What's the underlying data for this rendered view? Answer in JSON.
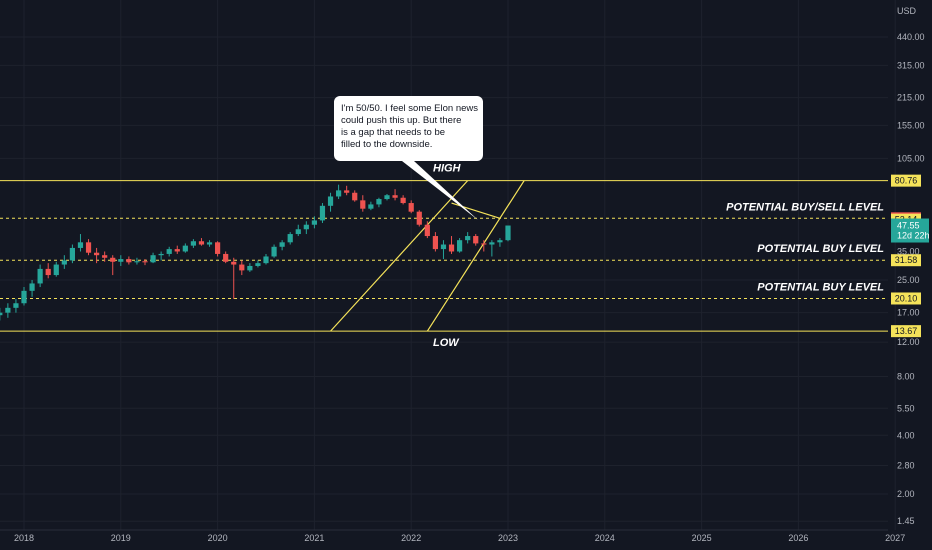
{
  "chart_data": {
    "type": "candlestick",
    "currency": "USD",
    "y_scale": "log",
    "ylim": [
      1.45,
      600
    ],
    "y_ticks": [
      "440.00",
      "315.00",
      "215.00",
      "155.00",
      "105.00",
      "25.00",
      "17.00",
      "12.00",
      "8.00",
      "5.50",
      "4.00",
      "2.80",
      "2.00",
      "1.45"
    ],
    "x_ticks": [
      "2018",
      "2019",
      "2020",
      "2021",
      "2022",
      "2023",
      "2024",
      "2025",
      "2026",
      "2027"
    ],
    "candles": [
      {
        "date": "2017-10",
        "o": 16.5,
        "h": 18.0,
        "l": 15.5,
        "c": 17.0
      },
      {
        "date": "2017-11",
        "o": 17.0,
        "h": 19.0,
        "l": 16.0,
        "c": 18.0
      },
      {
        "date": "2017-12",
        "o": 18.0,
        "h": 20.0,
        "l": 17.0,
        "c": 19.0
      },
      {
        "date": "2018-01",
        "o": 19.0,
        "h": 23.0,
        "l": 18.5,
        "c": 22.0
      },
      {
        "date": "2018-02",
        "o": 22.0,
        "h": 25.0,
        "l": 20.5,
        "c": 24.0
      },
      {
        "date": "2018-03",
        "o": 24.0,
        "h": 30.0,
        "l": 23.0,
        "c": 28.5
      },
      {
        "date": "2018-04",
        "o": 28.5,
        "h": 30.5,
        "l": 25.5,
        "c": 26.5
      },
      {
        "date": "2018-05",
        "o": 26.5,
        "h": 31.0,
        "l": 26.0,
        "c": 30.0
      },
      {
        "date": "2018-06",
        "o": 30.0,
        "h": 33.5,
        "l": 28.5,
        "c": 31.5
      },
      {
        "date": "2018-07",
        "o": 31.5,
        "h": 38.0,
        "l": 30.5,
        "c": 36.5
      },
      {
        "date": "2018-08",
        "o": 36.5,
        "h": 43.0,
        "l": 35.0,
        "c": 39.0
      },
      {
        "date": "2018-09",
        "o": 39.0,
        "h": 40.5,
        "l": 33.5,
        "c": 34.5
      },
      {
        "date": "2018-10",
        "o": 34.5,
        "h": 36.5,
        "l": 30.5,
        "c": 33.5
      },
      {
        "date": "2018-11",
        "o": 33.5,
        "h": 35.0,
        "l": 31.0,
        "c": 32.5
      },
      {
        "date": "2018-12",
        "o": 32.5,
        "h": 33.5,
        "l": 26.5,
        "c": 31.0
      },
      {
        "date": "2019-01",
        "o": 31.0,
        "h": 33.5,
        "l": 29.5,
        "c": 32.0
      },
      {
        "date": "2019-02",
        "o": 32.0,
        "h": 33.0,
        "l": 30.0,
        "c": 30.8
      },
      {
        "date": "2019-03",
        "o": 30.8,
        "h": 32.5,
        "l": 30.0,
        "c": 31.2
      },
      {
        "date": "2019-04",
        "o": 31.2,
        "h": 32.0,
        "l": 29.8,
        "c": 30.8
      },
      {
        "date": "2019-05",
        "o": 30.8,
        "h": 34.5,
        "l": 30.5,
        "c": 33.5
      },
      {
        "date": "2019-06",
        "o": 33.5,
        "h": 35.0,
        "l": 31.5,
        "c": 34.0
      },
      {
        "date": "2019-07",
        "o": 34.0,
        "h": 37.0,
        "l": 33.0,
        "c": 36.0
      },
      {
        "date": "2019-08",
        "o": 36.0,
        "h": 37.5,
        "l": 34.0,
        "c": 35.0
      },
      {
        "date": "2019-09",
        "o": 35.0,
        "h": 38.5,
        "l": 34.5,
        "c": 37.5
      },
      {
        "date": "2019-10",
        "o": 37.5,
        "h": 40.5,
        "l": 36.5,
        "c": 39.5
      },
      {
        "date": "2019-11",
        "o": 39.5,
        "h": 41.0,
        "l": 37.5,
        "c": 38.0
      },
      {
        "date": "2019-12",
        "o": 38.0,
        "h": 40.0,
        "l": 37.0,
        "c": 39.0
      },
      {
        "date": "2020-01",
        "o": 39.0,
        "h": 39.5,
        "l": 33.0,
        "c": 34.0
      },
      {
        "date": "2020-02",
        "o": 34.0,
        "h": 35.0,
        "l": 30.5,
        "c": 31.0
      },
      {
        "date": "2020-03",
        "o": 31.0,
        "h": 32.5,
        "l": 20.0,
        "c": 30.0
      },
      {
        "date": "2020-04",
        "o": 30.0,
        "h": 31.5,
        "l": 26.5,
        "c": 28.0
      },
      {
        "date": "2020-05",
        "o": 28.0,
        "h": 30.5,
        "l": 27.5,
        "c": 29.5
      },
      {
        "date": "2020-06",
        "o": 29.5,
        "h": 31.5,
        "l": 29.0,
        "c": 30.5
      },
      {
        "date": "2020-07",
        "o": 30.5,
        "h": 34.0,
        "l": 30.0,
        "c": 33.0
      },
      {
        "date": "2020-08",
        "o": 33.0,
        "h": 38.0,
        "l": 32.5,
        "c": 37.0
      },
      {
        "date": "2020-09",
        "o": 37.0,
        "h": 40.0,
        "l": 35.5,
        "c": 39.0
      },
      {
        "date": "2020-10",
        "o": 39.0,
        "h": 44.0,
        "l": 38.0,
        "c": 43.0
      },
      {
        "date": "2020-11",
        "o": 43.0,
        "h": 48.0,
        "l": 42.0,
        "c": 45.5
      },
      {
        "date": "2020-12",
        "o": 45.5,
        "h": 50.0,
        "l": 43.0,
        "c": 48.0
      },
      {
        "date": "2021-01",
        "o": 48.0,
        "h": 53.0,
        "l": 46.0,
        "c": 50.5
      },
      {
        "date": "2021-02",
        "o": 50.5,
        "h": 62.0,
        "l": 49.0,
        "c": 60.0
      },
      {
        "date": "2021-03",
        "o": 60.0,
        "h": 70.0,
        "l": 56.0,
        "c": 67.0
      },
      {
        "date": "2021-04",
        "o": 67.0,
        "h": 77.0,
        "l": 65.0,
        "c": 72.0
      },
      {
        "date": "2021-05",
        "o": 72.0,
        "h": 76.0,
        "l": 68.0,
        "c": 70.0
      },
      {
        "date": "2021-06",
        "o": 70.0,
        "h": 72.0,
        "l": 63.0,
        "c": 64.0
      },
      {
        "date": "2021-07",
        "o": 64.0,
        "h": 68.0,
        "l": 56.0,
        "c": 58.0
      },
      {
        "date": "2021-08",
        "o": 58.0,
        "h": 63.0,
        "l": 57.0,
        "c": 61.0
      },
      {
        "date": "2021-09",
        "o": 61.0,
        "h": 66.0,
        "l": 59.0,
        "c": 65.0
      },
      {
        "date": "2021-10",
        "o": 65.0,
        "h": 69.0,
        "l": 64.0,
        "c": 68.0
      },
      {
        "date": "2021-11",
        "o": 68.0,
        "h": 73.0,
        "l": 64.0,
        "c": 66.0
      },
      {
        "date": "2021-12",
        "o": 66.0,
        "h": 68.0,
        "l": 61.0,
        "c": 62.0
      },
      {
        "date": "2022-01",
        "o": 62.0,
        "h": 64.0,
        "l": 55.0,
        "c": 56.0
      },
      {
        "date": "2022-02",
        "o": 56.0,
        "h": 57.0,
        "l": 47.0,
        "c": 48.0
      },
      {
        "date": "2022-03",
        "o": 48.0,
        "h": 50.0,
        "l": 41.0,
        "c": 42.0
      },
      {
        "date": "2022-04",
        "o": 42.0,
        "h": 44.0,
        "l": 35.0,
        "c": 36.0
      },
      {
        "date": "2022-05",
        "o": 36.0,
        "h": 40.0,
        "l": 32.0,
        "c": 38.0
      },
      {
        "date": "2022-06",
        "o": 38.0,
        "h": 42.0,
        "l": 34.0,
        "c": 35.0
      },
      {
        "date": "2022-07",
        "o": 35.0,
        "h": 41.0,
        "l": 34.5,
        "c": 40.0
      },
      {
        "date": "2022-08",
        "o": 40.0,
        "h": 44.0,
        "l": 38.5,
        "c": 42.0
      },
      {
        "date": "2022-09",
        "o": 42.0,
        "h": 43.0,
        "l": 37.5,
        "c": 38.5
      },
      {
        "date": "2022-10",
        "o": 38.5,
        "h": 40.0,
        "l": 35.0,
        "c": 38.0
      },
      {
        "date": "2022-11",
        "o": 38.0,
        "h": 40.0,
        "l": 33.0,
        "c": 39.0
      },
      {
        "date": "2022-12",
        "o": 39.0,
        "h": 41.0,
        "l": 37.0,
        "c": 40.0
      },
      {
        "date": "2023-01",
        "o": 40.0,
        "h": 47.0,
        "l": 39.5,
        "c": 47.55
      }
    ],
    "levels": [
      {
        "value": 80.76,
        "style": "solid",
        "label": "HIGH",
        "tag": "80.76"
      },
      {
        "value": 51.78,
        "style": "dashed",
        "label": "POTENTIAL BUY/SELL LEVEL",
        "tag": "51.78"
      },
      {
        "value": 31.58,
        "style": "dashed",
        "label": "POTENTIAL BUY LEVEL",
        "tag": "31.58"
      },
      {
        "value": 20.1,
        "style": "dashed",
        "label": "POTENTIAL BUY LEVEL",
        "tag": "20.10"
      },
      {
        "value": 13.67,
        "style": "solid",
        "label": "LOW",
        "tag": "13.67"
      }
    ],
    "tags": {
      "high_52": "52.14",
      "current_price": "47.55",
      "countdown": "12d 22h",
      "partial_tick": "35.00"
    },
    "channel_lines": [
      {
        "from": {
          "date": "2021-03",
          "v": 13.67
        },
        "to": {
          "date": "2022-08",
          "v": 80.76
        }
      },
      {
        "from": {
          "date": "2022-03",
          "v": 13.67
        },
        "to": {
          "date": "2023-03",
          "v": 80.76
        }
      },
      {
        "from": {
          "date": "2022-06",
          "v": 62.0
        },
        "to": {
          "date": "2022-12",
          "v": 51.78
        }
      }
    ],
    "callout": {
      "lines": [
        "I'm 50/50. I feel some Elon news",
        "could push this up. But there",
        "is a gap that needs to be",
        "filled to the downside."
      ]
    },
    "colors": {
      "background": "#131722",
      "up": "#26a69a",
      "down": "#ef5350",
      "level": "#f5e35a",
      "axis_text": "#b2b5be",
      "current_tag": "#26a69a",
      "buy_sell_tag": "#ef5350",
      "grid": "#1e222d"
    }
  }
}
